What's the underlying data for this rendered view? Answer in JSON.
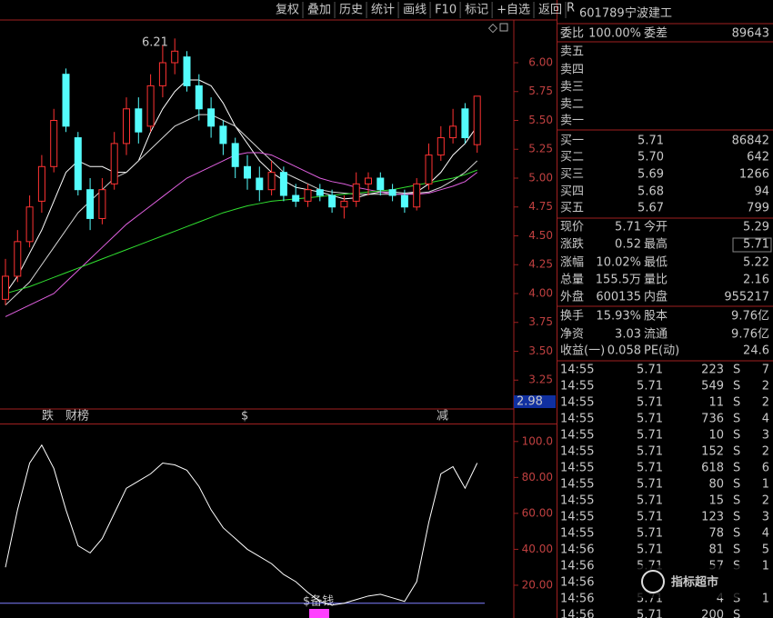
{
  "toolbar": [
    "复权",
    "叠加",
    "历史",
    "统计",
    "画线",
    "F10",
    "标记",
    "+自选",
    "返回"
  ],
  "header": {
    "flag": "R",
    "code": "601789",
    "name": "宁波建工"
  },
  "price_chart": {
    "ylim": [
      3.0,
      6.37
    ],
    "yticks": [
      {
        "value": 6.0,
        "label": "6.00"
      },
      {
        "value": 5.75,
        "label": "5.75"
      },
      {
        "value": 5.5,
        "label": "5.50"
      },
      {
        "value": 5.25,
        "label": "5.25"
      },
      {
        "value": 5.0,
        "label": "5.00"
      },
      {
        "value": 4.75,
        "label": "4.75"
      },
      {
        "value": 4.5,
        "label": "4.50"
      },
      {
        "value": 4.25,
        "label": "4.25"
      },
      {
        "value": 4.0,
        "label": "4.00"
      },
      {
        "value": 3.75,
        "label": "3.75"
      },
      {
        "value": 3.5,
        "label": "3.50"
      },
      {
        "value": 3.25,
        "label": "3.25"
      }
    ],
    "low_label": "2.98",
    "high_annotation": "6.21",
    "candles": [
      [
        3.95,
        4.3,
        3.9,
        4.15
      ],
      [
        4.15,
        4.55,
        4.1,
        4.45
      ],
      [
        4.45,
        4.85,
        4.4,
        4.75
      ],
      [
        4.8,
        5.2,
        4.7,
        5.1
      ],
      [
        5.1,
        5.6,
        5.05,
        5.5
      ],
      [
        5.9,
        5.95,
        5.4,
        5.45
      ],
      [
        5.35,
        5.4,
        4.85,
        4.9
      ],
      [
        4.9,
        5.0,
        4.55,
        4.65
      ],
      [
        4.65,
        5.0,
        4.6,
        4.9
      ],
      [
        4.95,
        5.4,
        4.9,
        5.3
      ],
      [
        5.3,
        5.7,
        5.2,
        5.6
      ],
      [
        5.6,
        5.7,
        5.3,
        5.4
      ],
      [
        5.45,
        5.9,
        5.4,
        5.8
      ],
      [
        5.8,
        6.15,
        5.7,
        6.0
      ],
      [
        6.0,
        6.21,
        5.9,
        6.1
      ],
      [
        6.05,
        6.1,
        5.75,
        5.8
      ],
      [
        5.8,
        5.9,
        5.5,
        5.6
      ],
      [
        5.6,
        5.7,
        5.35,
        5.45
      ],
      [
        5.45,
        5.5,
        5.2,
        5.3
      ],
      [
        5.3,
        5.35,
        5.0,
        5.1
      ],
      [
        5.1,
        5.2,
        4.9,
        5.0
      ],
      [
        5.0,
        5.1,
        4.8,
        4.9
      ],
      [
        4.9,
        5.15,
        4.85,
        5.05
      ],
      [
        5.05,
        5.1,
        4.8,
        4.85
      ],
      [
        4.85,
        4.95,
        4.75,
        4.8
      ],
      [
        4.8,
        4.95,
        4.75,
        4.9
      ],
      [
        4.9,
        4.95,
        4.8,
        4.85
      ],
      [
        4.85,
        4.9,
        4.7,
        4.75
      ],
      [
        4.75,
        4.85,
        4.65,
        4.8
      ],
      [
        4.8,
        5.05,
        4.75,
        4.95
      ],
      [
        4.95,
        5.05,
        4.85,
        5.0
      ],
      [
        5.0,
        5.05,
        4.85,
        4.9
      ],
      [
        4.9,
        4.95,
        4.8,
        4.85
      ],
      [
        4.85,
        4.9,
        4.7,
        4.75
      ],
      [
        4.75,
        5.0,
        4.72,
        4.95
      ],
      [
        4.95,
        5.3,
        4.9,
        5.2
      ],
      [
        5.2,
        5.45,
        5.15,
        5.35
      ],
      [
        5.35,
        5.6,
        5.3,
        5.45
      ],
      [
        5.6,
        5.65,
        5.3,
        5.35
      ],
      [
        5.29,
        5.71,
        5.22,
        5.71
      ]
    ],
    "ma_lines": [
      {
        "color": "#ffffff",
        "values": [
          4.0,
          4.15,
          4.35,
          4.55,
          4.8,
          5.05,
          5.15,
          5.1,
          5.1,
          5.05,
          5.05,
          5.15,
          5.4,
          5.6,
          5.75,
          5.85,
          5.85,
          5.8,
          5.65,
          5.45,
          5.3,
          5.15,
          5.05,
          4.98,
          4.92,
          4.9,
          4.88,
          4.85,
          4.82,
          4.83,
          4.86,
          4.88,
          4.88,
          4.87,
          4.88,
          4.95,
          5.05,
          5.2,
          5.3,
          5.45
        ]
      },
      {
        "color": "#d8d8d8",
        "values": [
          3.9,
          4.0,
          4.1,
          4.25,
          4.4,
          4.55,
          4.7,
          4.8,
          4.9,
          5.0,
          5.05,
          5.15,
          5.25,
          5.35,
          5.45,
          5.5,
          5.55,
          5.55,
          5.5,
          5.45,
          5.35,
          5.25,
          5.15,
          5.05,
          5.0,
          4.95,
          4.9,
          4.88,
          4.87,
          4.86,
          4.86,
          4.86,
          4.86,
          4.86,
          4.87,
          4.88,
          4.92,
          4.98,
          5.05,
          5.15
        ]
      },
      {
        "color": "#e060e0",
        "values": [
          3.8,
          3.85,
          3.9,
          3.95,
          4.0,
          4.1,
          4.2,
          4.3,
          4.4,
          4.5,
          4.6,
          4.68,
          4.76,
          4.84,
          4.92,
          5.0,
          5.05,
          5.1,
          5.15,
          5.2,
          5.22,
          5.22,
          5.2,
          5.15,
          5.1,
          5.05,
          5.0,
          4.97,
          4.95,
          4.92,
          4.9,
          4.88,
          4.86,
          4.86,
          4.86,
          4.87,
          4.9,
          4.93,
          4.97,
          5.05
        ]
      },
      {
        "color": "#30e030",
        "values": [
          4.0,
          4.03,
          4.06,
          4.1,
          4.14,
          4.18,
          4.22,
          4.26,
          4.3,
          4.34,
          4.38,
          4.42,
          4.46,
          4.5,
          4.54,
          4.58,
          4.62,
          4.66,
          4.7,
          4.73,
          4.76,
          4.78,
          4.8,
          4.81,
          4.82,
          4.83,
          4.84,
          4.85,
          4.86,
          4.87,
          4.88,
          4.89,
          4.9,
          4.92,
          4.94,
          4.96,
          4.98,
          5.0,
          5.03,
          5.07
        ]
      }
    ]
  },
  "signals": [
    "跌",
    "财榜",
    "$",
    "减"
  ],
  "indicator": {
    "ylim": [
      0,
      109
    ],
    "yticks": [
      {
        "value": 20,
        "label": "20.00"
      },
      {
        "value": 40,
        "label": "40.00"
      },
      {
        "value": 60,
        "label": "60.00"
      },
      {
        "value": 80,
        "label": "80.00"
      },
      {
        "value": 100,
        "label": "100.0"
      }
    ],
    "baseline": 10,
    "note": "$备钱",
    "values": [
      30,
      62,
      88,
      98,
      85,
      62,
      42,
      38,
      46,
      60,
      74,
      78,
      82,
      88,
      87,
      84,
      75,
      62,
      52,
      46,
      40,
      36,
      32,
      26,
      22,
      16,
      11,
      9,
      10,
      12,
      14,
      15,
      13,
      11,
      22,
      55,
      82,
      86,
      74,
      88
    ]
  },
  "order_book": {
    "ratio": [
      "委比",
      "100.00%",
      "委差",
      "89643"
    ],
    "sell": [
      "卖五",
      "卖四",
      "卖三",
      "卖二",
      "卖一"
    ],
    "buy": [
      [
        "买一",
        "5.71",
        "86842"
      ],
      [
        "买二",
        "5.70",
        "642"
      ],
      [
        "买三",
        "5.69",
        "1266"
      ],
      [
        "买四",
        "5.68",
        "94"
      ],
      [
        "买五",
        "5.67",
        "799"
      ]
    ]
  },
  "stats": [
    [
      "现价",
      "5.71",
      "今开",
      "5.29"
    ],
    [
      "涨跌",
      "0.52",
      "最高",
      "5.71"
    ],
    [
      "涨幅",
      "10.02%",
      "最低",
      "5.22"
    ],
    [
      "总量",
      "155.5万",
      "量比",
      "2.16"
    ],
    [
      "外盘",
      "600135",
      "内盘",
      "955217"
    ],
    [
      "换手",
      "15.93%",
      "股本",
      "9.76亿"
    ],
    [
      "净资",
      "3.03",
      "流通",
      "9.76亿"
    ],
    [
      "收益(一)",
      "0.058",
      "PE(动)",
      "24.6"
    ]
  ],
  "ticks": [
    [
      "14:55",
      "5.71",
      "223",
      "S",
      "7"
    ],
    [
      "14:55",
      "5.71",
      "549",
      "S",
      "2"
    ],
    [
      "14:55",
      "5.71",
      "11",
      "S",
      "2"
    ],
    [
      "14:55",
      "5.71",
      "736",
      "S",
      "4"
    ],
    [
      "14:55",
      "5.71",
      "10",
      "S",
      "3"
    ],
    [
      "14:55",
      "5.71",
      "152",
      "S",
      "2"
    ],
    [
      "14:55",
      "5.71",
      "618",
      "S",
      "6"
    ],
    [
      "14:55",
      "5.71",
      "80",
      "S",
      "1"
    ],
    [
      "14:55",
      "5.71",
      "15",
      "S",
      "2"
    ],
    [
      "14:55",
      "5.71",
      "123",
      "S",
      "3"
    ],
    [
      "14:55",
      "5.71",
      "78",
      "S",
      "4"
    ],
    [
      "14:56",
      "5.71",
      "81",
      "S",
      "5"
    ],
    [
      "14:56",
      "5.71",
      "57",
      "S",
      "1"
    ],
    [
      "14:56"
    ],
    [
      "14:56",
      "5.71",
      "4",
      "S",
      "1"
    ],
    [
      "14:56",
      "5.71",
      "200",
      "S"
    ]
  ],
  "watermark": "指标超市"
}
